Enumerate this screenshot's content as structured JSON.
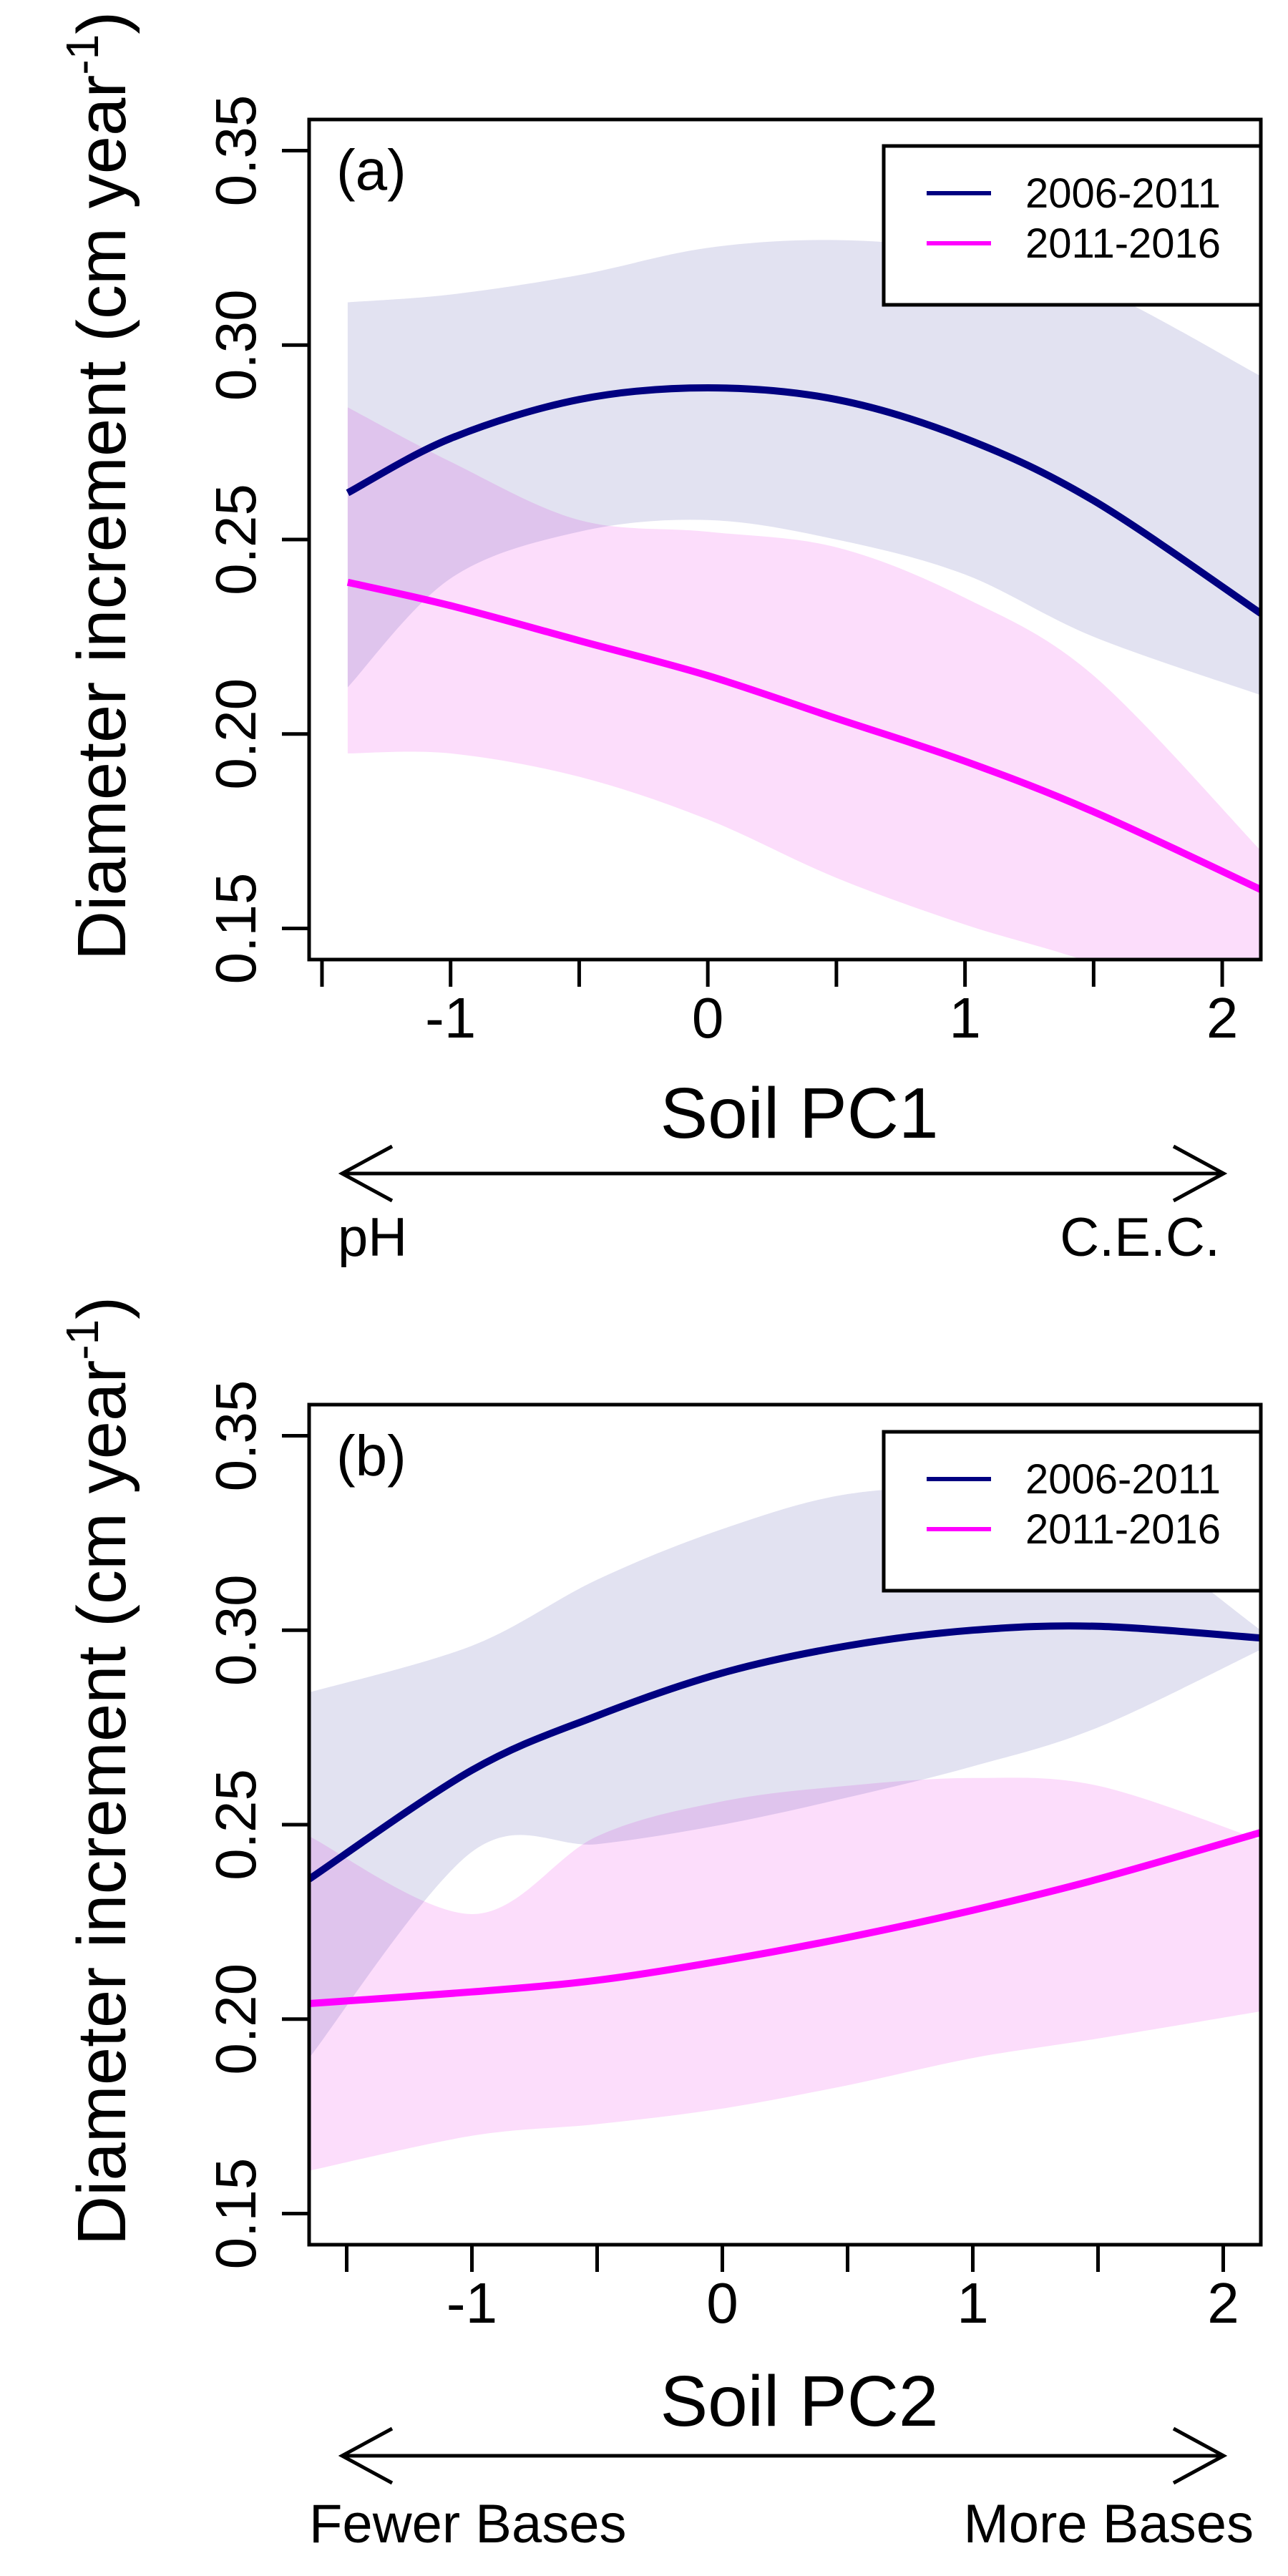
{
  "chart_data": [
    {
      "type": "line",
      "panel_label": "(a)",
      "xlabel": "Soil PC1",
      "ylabel": "Diameter increment (cm year",
      "ylabel_superscript": "-1",
      "ylabel_close": ")",
      "xlim": [
        -1.55,
        2.15
      ],
      "ylim": [
        0.142,
        0.358
      ],
      "x_ticks": [
        -1.5,
        -1,
        -0.5,
        0,
        0.5,
        1,
        1.5,
        2
      ],
      "x_tick_labels": [
        "",
        "-1",
        "",
        "0",
        "",
        "1",
        "",
        "2"
      ],
      "y_ticks": [
        0.15,
        0.2,
        0.25,
        0.3,
        0.35
      ],
      "y_tick_labels": [
        "0.15",
        "0.20",
        "0.25",
        "0.30",
        "0.35"
      ],
      "legend_position": "top-right",
      "legend": [
        "2006-2011",
        "2011-2016"
      ],
      "arrow": {
        "left_label": "pH",
        "right_label": "C.E.C."
      },
      "series": [
        {
          "name": "2006-2011",
          "color": "#000080",
          "band_color": "#e2e2f1",
          "x": [
            -1.4,
            -1,
            -0.5,
            0,
            0.5,
            1,
            1.5,
            2.15
          ],
          "y": [
            0.262,
            0.276,
            0.286,
            0.289,
            0.286,
            0.276,
            0.26,
            0.231
          ],
          "lower": [
            0.212,
            0.24,
            0.252,
            0.255,
            0.25,
            0.241,
            0.225,
            0.21
          ],
          "upper": [
            0.311,
            0.313,
            0.318,
            0.325,
            0.327,
            0.324,
            0.315,
            0.292
          ]
        },
        {
          "name": "2011-2016",
          "color": "#ff00ff",
          "band_color": "#fcddfb",
          "x": [
            -1.4,
            -1,
            -0.5,
            0,
            0.5,
            1,
            1.5,
            2.15
          ],
          "y": [
            0.239,
            0.233,
            0.224,
            0.215,
            0.204,
            0.193,
            0.18,
            0.16
          ],
          "lower": [
            0.195,
            0.195,
            0.189,
            0.178,
            0.163,
            0.151,
            0.141,
            0.125
          ],
          "upper": [
            0.284,
            0.27,
            0.255,
            0.252,
            0.248,
            0.235,
            0.215,
            0.17
          ]
        }
      ]
    },
    {
      "type": "line",
      "panel_label": "(b)",
      "xlabel": "Soil PC2",
      "ylabel": "Diameter increment (cm year",
      "ylabel_superscript": "-1",
      "ylabel_close": ")",
      "xlim": [
        -1.65,
        2.15
      ],
      "ylim": [
        0.142,
        0.358
      ],
      "x_ticks": [
        -1.5,
        -1,
        -0.5,
        0,
        0.5,
        1,
        1.5,
        2
      ],
      "x_tick_labels": [
        "",
        "-1",
        "",
        "0",
        "",
        "1",
        "",
        "2"
      ],
      "y_ticks": [
        0.15,
        0.2,
        0.25,
        0.3,
        0.35
      ],
      "y_tick_labels": [
        "0.15",
        "0.20",
        "0.25",
        "0.30",
        "0.35"
      ],
      "legend_position": "top-right",
      "legend": [
        "2006-2011",
        "2011-2016"
      ],
      "arrow": {
        "left_label": "Fewer Bases",
        "right_label": "More Bases"
      },
      "series": [
        {
          "name": "2006-2011",
          "color": "#000080",
          "band_color": "#e2e2f1",
          "x": [
            -1.65,
            -1,
            -0.5,
            0,
            0.5,
            1,
            1.5,
            2.15
          ],
          "y": [
            0.236,
            0.264,
            0.278,
            0.289,
            0.296,
            0.3,
            0.301,
            0.298
          ],
          "lower": [
            0.19,
            0.243,
            0.245,
            0.25,
            0.257,
            0.265,
            0.275,
            0.295
          ],
          "upper": [
            0.284,
            0.296,
            0.313,
            0.326,
            0.335,
            0.336,
            0.33,
            0.3
          ]
        },
        {
          "name": "2011-2016",
          "color": "#ff00ff",
          "band_color": "#fcddfb",
          "x": [
            -1.65,
            -1,
            -0.5,
            0,
            0.5,
            1,
            1.5,
            2.15
          ],
          "y": [
            0.204,
            0.207,
            0.21,
            0.215,
            0.221,
            0.228,
            0.236,
            0.248
          ],
          "lower": [
            0.161,
            0.17,
            0.173,
            0.177,
            0.183,
            0.19,
            0.195,
            0.202
          ],
          "upper": [
            0.247,
            0.227,
            0.247,
            0.256,
            0.26,
            0.262,
            0.26,
            0.246
          ]
        }
      ]
    }
  ]
}
